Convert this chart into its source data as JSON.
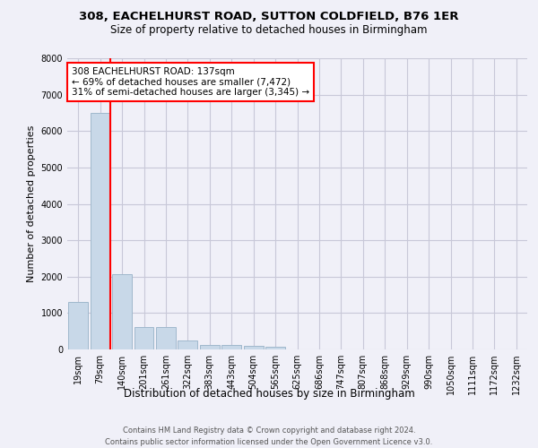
{
  "title_line1": "308, EACHELHURST ROAD, SUTTON COLDFIELD, B76 1ER",
  "title_line2": "Size of property relative to detached houses in Birmingham",
  "xlabel": "Distribution of detached houses by size in Birmingham",
  "ylabel": "Number of detached properties",
  "footer_line1": "Contains HM Land Registry data © Crown copyright and database right 2024.",
  "footer_line2": "Contains public sector information licensed under the Open Government Licence v3.0.",
  "bin_labels": [
    "19sqm",
    "79sqm",
    "140sqm",
    "201sqm",
    "261sqm",
    "322sqm",
    "383sqm",
    "443sqm",
    "504sqm",
    "565sqm",
    "625sqm",
    "686sqm",
    "747sqm",
    "807sqm",
    "868sqm",
    "929sqm",
    "990sqm",
    "1050sqm",
    "1111sqm",
    "1172sqm",
    "1232sqm"
  ],
  "bar_values": [
    1300,
    6500,
    2080,
    620,
    620,
    250,
    130,
    120,
    90,
    70,
    0,
    0,
    0,
    0,
    0,
    0,
    0,
    0,
    0,
    0,
    0
  ],
  "bar_color": "#c8d8e8",
  "bar_edgecolor": "#a0b8cc",
  "grid_color": "#c8c8d8",
  "vline_color": "red",
  "vline_bin_index": 1,
  "annotation_line1": "308 EACHELHURST ROAD: 137sqm",
  "annotation_line2": "← 69% of detached houses are smaller (7,472)",
  "annotation_line3": "31% of semi-detached houses are larger (3,345) →",
  "annotation_box_facecolor": "white",
  "annotation_box_edgecolor": "red",
  "ylim": [
    0,
    8000
  ],
  "yticks": [
    0,
    1000,
    2000,
    3000,
    4000,
    5000,
    6000,
    7000,
    8000
  ],
  "background_color": "#f0f0f8",
  "title1_fontsize": 9.5,
  "title2_fontsize": 8.5,
  "ylabel_fontsize": 8,
  "xlabel_fontsize": 8.5,
  "tick_fontsize": 7,
  "footer_fontsize": 6,
  "annotation_fontsize": 7.5
}
